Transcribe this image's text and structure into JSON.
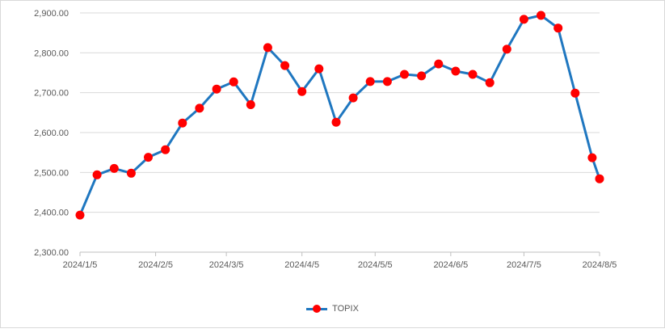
{
  "chart_data": {
    "type": "line",
    "colors": {
      "line": "#1f77c0",
      "marker": "#ff0000",
      "grid": "#d9d9d9"
    },
    "x_ticks": [
      "2024/1/5",
      "2024/2/5",
      "2024/3/5",
      "2024/4/5",
      "2024/5/5",
      "2024/6/5",
      "2024/7/5",
      "2024/8/5"
    ],
    "y_ticks": [
      "2,300.00",
      "2,400.00",
      "2,500.00",
      "2,600.00",
      "2,700.00",
      "2,800.00",
      "2,900.00"
    ],
    "xlim": [
      "2024-01-05",
      "2024-08-05"
    ],
    "ylim": [
      2300,
      2900
    ],
    "grid": "horizontal",
    "legend_position": "bottom",
    "series": [
      {
        "name": "TOPIX",
        "points": [
          {
            "x": "2024-01-05",
            "y": 2393
          },
          {
            "x": "2024-01-12",
            "y": 2494
          },
          {
            "x": "2024-01-19",
            "y": 2510
          },
          {
            "x": "2024-01-26",
            "y": 2498
          },
          {
            "x": "2024-02-02",
            "y": 2538
          },
          {
            "x": "2024-02-09",
            "y": 2557
          },
          {
            "x": "2024-02-16",
            "y": 2624
          },
          {
            "x": "2024-02-23",
            "y": 2661
          },
          {
            "x": "2024-03-01",
            "y": 2709
          },
          {
            "x": "2024-03-08",
            "y": 2727
          },
          {
            "x": "2024-03-15",
            "y": 2670
          },
          {
            "x": "2024-03-22",
            "y": 2813
          },
          {
            "x": "2024-03-29",
            "y": 2768
          },
          {
            "x": "2024-04-05",
            "y": 2703
          },
          {
            "x": "2024-04-12",
            "y": 2760
          },
          {
            "x": "2024-04-19",
            "y": 2626
          },
          {
            "x": "2024-04-26",
            "y": 2687
          },
          {
            "x": "2024-05-03",
            "y": 2728
          },
          {
            "x": "2024-05-10",
            "y": 2728
          },
          {
            "x": "2024-05-17",
            "y": 2746
          },
          {
            "x": "2024-05-24",
            "y": 2742
          },
          {
            "x": "2024-05-31",
            "y": 2772
          },
          {
            "x": "2024-06-07",
            "y": 2754
          },
          {
            "x": "2024-06-14",
            "y": 2746
          },
          {
            "x": "2024-06-21",
            "y": 2725
          },
          {
            "x": "2024-06-28",
            "y": 2809
          },
          {
            "x": "2024-07-05",
            "y": 2884
          },
          {
            "x": "2024-07-12",
            "y": 2894
          },
          {
            "x": "2024-07-19",
            "y": 2862
          },
          {
            "x": "2024-07-26",
            "y": 2699
          },
          {
            "x": "2024-08-02",
            "y": 2537
          },
          {
            "x": "2024-08-05",
            "y": 2484
          }
        ]
      }
    ]
  }
}
